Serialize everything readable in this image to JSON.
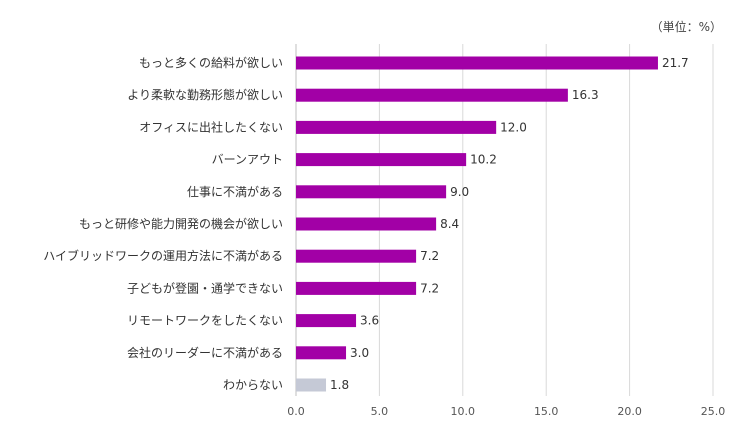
{
  "chart_data": {
    "type": "bar",
    "orientation": "horizontal",
    "unit_note": "（単位：%）",
    "categories": [
      "もっと多くの給料が欲しい",
      "より柔軟な勤務形態が欲しい",
      "オフィスに出社したくない",
      "バーンアウト",
      "仕事に不満がある",
      "もっと研修や能力開発の機会が欲しい",
      "ハイブリッドワークの運用方法に不満がある",
      "子どもが登園・通学できない",
      "リモートワークをしたくない",
      "会社のリーダーに不満がある",
      "わからない"
    ],
    "values": [
      21.7,
      16.3,
      12.0,
      10.2,
      9.0,
      8.4,
      7.2,
      7.2,
      3.6,
      3.0,
      1.8
    ],
    "value_labels": [
      "21.7",
      "16.3",
      "12.0",
      "10.2",
      "9.0",
      "8.4",
      "7.2",
      "7.2",
      "3.6",
      "3.0",
      "1.8"
    ],
    "bar_colors": [
      "#a200a6",
      "#a200a6",
      "#a200a6",
      "#a200a6",
      "#a200a6",
      "#a200a6",
      "#a200a6",
      "#a200a6",
      "#a200a6",
      "#a200a6",
      "#c5c9d6"
    ],
    "xlim": [
      0,
      25
    ],
    "x_ticks": [
      0,
      5,
      10,
      15,
      20,
      25
    ],
    "x_tick_labels": [
      "0.0",
      "5.0",
      "10.0",
      "15.0",
      "20.0",
      "25.0"
    ],
    "grid": true,
    "legend": "none"
  }
}
